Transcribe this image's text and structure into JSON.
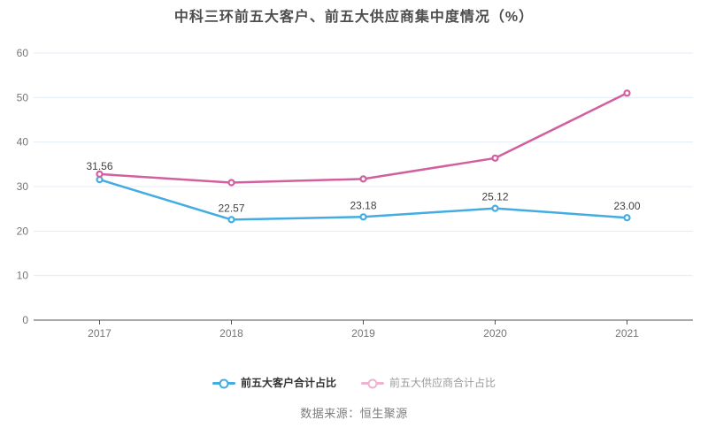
{
  "title": "中科三环前五大客户、前五大供应商集中度情况（%）",
  "source_note": "数据来源：恒生聚源",
  "colors": {
    "customer_line": "#43ACE3",
    "supplier_line": "#D2609E",
    "gridline": "#E5ECF5",
    "axis_line": "#555555",
    "axis_label": "#757575",
    "data_label": "#404040",
    "title_text": "#4d4d4d",
    "faded_supplier_marker": "#EFB3D2",
    "legend_text_active": "#333333",
    "legend_text_muted": "#9b9b9b"
  },
  "chart_data": {
    "type": "line",
    "categories": [
      "2017",
      "2018",
      "2019",
      "2020",
      "2021"
    ],
    "series": [
      {
        "name": "前五大客户合计占比",
        "color": "#43ACE3",
        "values": [
          31.56,
          22.57,
          23.18,
          25.12,
          23.0
        ],
        "labels": [
          "31.56",
          "22.57",
          "23.18",
          "25.12",
          "23.00"
        ]
      },
      {
        "name": "前五大供应商合计占比",
        "color": "#D2609E",
        "values": [
          32.8,
          30.9,
          31.7,
          36.4,
          51.0
        ],
        "labels": null
      }
    ],
    "title": "中科三环前五大客户、前五大供应商集中度情况（%）",
    "xlabel": "",
    "ylabel": "",
    "ylim": [
      0,
      60
    ],
    "yticks": [
      0,
      10,
      20,
      30,
      40,
      50,
      60
    ],
    "grid": true,
    "legend_position": "bottom",
    "marker": "empty-circle"
  },
  "legend": {
    "items": [
      {
        "label": "前五大客户合计占比",
        "marker_color": "#43ACE3",
        "text_color": "#333333",
        "bold": true
      },
      {
        "label": "前五大供应商合计占比",
        "marker_color": "#EFB3D2",
        "text_color": "#9b9b9b",
        "bold": false
      }
    ]
  }
}
